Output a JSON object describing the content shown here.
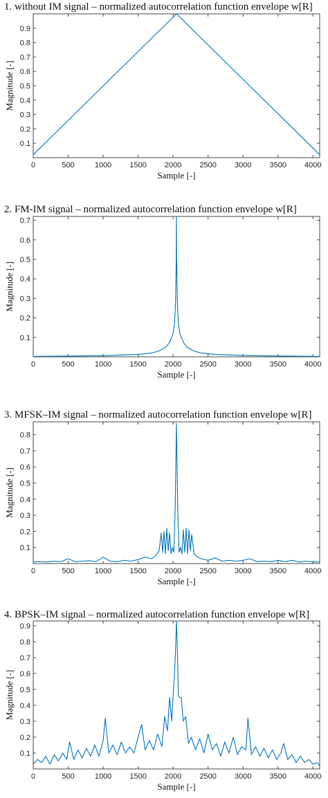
{
  "accent_color": "#0072bd",
  "chart_data": [
    {
      "type": "line",
      "title": "1. without IM signal – normalized autocorrelation function envelope w[R]",
      "xlabel": "Sample [-]",
      "ylabel": "Magnitude [-]",
      "xlim": [
        0,
        4096
      ],
      "ylim": [
        0,
        1
      ],
      "xticks": [
        0,
        500,
        1000,
        1500,
        2000,
        2500,
        3000,
        3500,
        4000
      ],
      "xtick_labels": [
        "0",
        "500",
        "1000",
        "1500",
        "2000",
        "2500",
        "3000",
        "3500",
        "4000"
      ],
      "yticks": [
        0.1,
        0.2,
        0.3,
        0.4,
        0.5,
        0.6,
        0.7,
        0.8,
        0.9
      ],
      "ytick_labels": [
        "0.1",
        "0.2",
        "0.3",
        "0.4",
        "0.5",
        "0.6",
        "0.7",
        "0.8",
        "0.9"
      ],
      "grid": false,
      "series": [
        {
          "x": [
            0,
            2048,
            4096
          ],
          "y": [
            0.02,
            1.0,
            0.02
          ]
        }
      ]
    },
    {
      "type": "line",
      "title": "2. FM-IM signal – normalized autocorrelation function envelope w[R]",
      "xlabel": "Sample [-]",
      "ylabel": "Magnitude [-]",
      "xlim": [
        0,
        4096
      ],
      "ylim": [
        0,
        0.72
      ],
      "xticks": [
        0,
        500,
        1000,
        1500,
        2000,
        2500,
        3000,
        3500,
        4000
      ],
      "xtick_labels": [
        "0",
        "500",
        "1000",
        "1500",
        "2000",
        "2500",
        "3000",
        "3500",
        "4000"
      ],
      "yticks": [
        0.1,
        0.2,
        0.3,
        0.4,
        0.5,
        0.6,
        0.7
      ],
      "ytick_labels": [
        "0.1",
        "0.2",
        "0.3",
        "0.4",
        "0.5",
        "0.6",
        "0.7"
      ],
      "grid": false,
      "series": [
        {
          "x": [
            0,
            500,
            1000,
            1500,
            1700,
            1800,
            1900,
            1950,
            2000,
            2020,
            2035,
            2045,
            2048,
            2051,
            2061,
            2076,
            2096,
            2146,
            2196,
            2296,
            2396,
            2596,
            3096,
            3596,
            4096
          ],
          "y": [
            0.002,
            0.004,
            0.006,
            0.012,
            0.02,
            0.03,
            0.05,
            0.075,
            0.12,
            0.17,
            0.28,
            0.5,
            0.72,
            0.5,
            0.28,
            0.17,
            0.12,
            0.075,
            0.05,
            0.03,
            0.02,
            0.012,
            0.006,
            0.004,
            0.002
          ]
        }
      ]
    },
    {
      "type": "line",
      "title": "3. MFSK–IM signal – normalized autocorrelation function envelope w[R]",
      "xlabel": "Sample [-]",
      "ylabel": "Magnitude [-]",
      "xlim": [
        0,
        4096
      ],
      "ylim": [
        0,
        0.88
      ],
      "xticks": [
        0,
        500,
        1000,
        1500,
        2000,
        2500,
        3000,
        3500,
        4000
      ],
      "xtick_labels": [
        "0",
        "500",
        "1000",
        "1500",
        "2000",
        "2500",
        "3000",
        "3500",
        "4000"
      ],
      "yticks": [
        0.1,
        0.2,
        0.3,
        0.4,
        0.5,
        0.6,
        0.7,
        0.8
      ],
      "ytick_labels": [
        "0.1",
        "0.2",
        "0.3",
        "0.4",
        "0.5",
        "0.6",
        "0.7",
        "0.8"
      ],
      "grid": false,
      "series": [
        {
          "x": [
            0,
            100,
            200,
            300,
            400,
            500,
            600,
            700,
            800,
            900,
            1000,
            1100,
            1200,
            1300,
            1400,
            1500,
            1600,
            1700,
            1750,
            1800,
            1830,
            1850,
            1870,
            1890,
            1910,
            1930,
            1950,
            1970,
            1990,
            2010,
            2030,
            2048,
            2066,
            2086,
            2106,
            2126,
            2146,
            2166,
            2186,
            2206,
            2226,
            2246,
            2266,
            2300,
            2350,
            2400,
            2500,
            2600,
            2700,
            2800,
            2900,
            3000,
            3100,
            3200,
            3300,
            3400,
            3500,
            3600,
            3700,
            3800,
            3900,
            4000,
            4096
          ],
          "y": [
            0.01,
            0.012,
            0.01,
            0.015,
            0.012,
            0.03,
            0.012,
            0.015,
            0.018,
            0.012,
            0.04,
            0.015,
            0.012,
            0.02,
            0.015,
            0.025,
            0.04,
            0.03,
            0.05,
            0.08,
            0.19,
            0.07,
            0.2,
            0.06,
            0.22,
            0.08,
            0.19,
            0.06,
            0.1,
            0.07,
            0.35,
            0.87,
            0.35,
            0.07,
            0.1,
            0.06,
            0.21,
            0.07,
            0.22,
            0.06,
            0.21,
            0.08,
            0.18,
            0.06,
            0.04,
            0.03,
            0.02,
            0.035,
            0.015,
            0.02,
            0.015,
            0.02,
            0.03,
            0.012,
            0.015,
            0.012,
            0.02,
            0.012,
            0.02,
            0.01,
            0.015,
            0.01,
            0.01
          ]
        }
      ]
    },
    {
      "type": "line",
      "title": "4. BPSK–IM signal – normalized autocorrelation function envelope w[R]",
      "xlabel": "Sample [-]",
      "ylabel": "Magnitude [-]",
      "xlim": [
        0,
        4096
      ],
      "ylim": [
        0,
        0.93
      ],
      "xticks": [
        0,
        500,
        1000,
        1500,
        2000,
        2500,
        3000,
        3500,
        4000
      ],
      "xtick_labels": [
        "0",
        "500",
        "1000",
        "1500",
        "2000",
        "2500",
        "3000",
        "3500",
        "4000"
      ],
      "yticks": [
        0.1,
        0.2,
        0.3,
        0.4,
        0.5,
        0.6,
        0.7,
        0.8,
        0.9
      ],
      "ytick_labels": [
        "0.1",
        "0.2",
        "0.3",
        "0.4",
        "0.5",
        "0.6",
        "0.7",
        "0.8",
        "0.9"
      ],
      "grid": false,
      "series": [
        {
          "x": [
            0,
            60,
            120,
            180,
            240,
            300,
            360,
            420,
            480,
            520,
            580,
            640,
            700,
            760,
            820,
            880,
            940,
            1000,
            1030,
            1080,
            1140,
            1200,
            1260,
            1320,
            1380,
            1440,
            1500,
            1550,
            1600,
            1660,
            1720,
            1780,
            1840,
            1880,
            1920,
            1950,
            1980,
            2000,
            2020,
            2035,
            2048,
            2061,
            2076,
            2096,
            2116,
            2146,
            2180,
            2220,
            2260,
            2320,
            2380,
            2440,
            2500,
            2560,
            2620,
            2680,
            2740,
            2800,
            2860,
            2920,
            2980,
            3040,
            3070,
            3120,
            3180,
            3240,
            3300,
            3360,
            3420,
            3480,
            3540,
            3580,
            3640,
            3700,
            3760,
            3820,
            3880,
            3940,
            4000,
            4060,
            4096
          ],
          "y": [
            0.03,
            0.06,
            0.04,
            0.08,
            0.03,
            0.09,
            0.05,
            0.1,
            0.06,
            0.17,
            0.06,
            0.12,
            0.07,
            0.13,
            0.08,
            0.15,
            0.08,
            0.18,
            0.32,
            0.1,
            0.15,
            0.09,
            0.17,
            0.1,
            0.14,
            0.1,
            0.2,
            0.28,
            0.12,
            0.18,
            0.12,
            0.22,
            0.14,
            0.33,
            0.24,
            0.45,
            0.3,
            0.46,
            0.6,
            0.75,
            0.93,
            0.75,
            0.46,
            0.45,
            0.45,
            0.3,
            0.33,
            0.16,
            0.2,
            0.12,
            0.19,
            0.1,
            0.22,
            0.12,
            0.16,
            0.08,
            0.17,
            0.1,
            0.2,
            0.09,
            0.14,
            0.12,
            0.32,
            0.09,
            0.14,
            0.08,
            0.13,
            0.07,
            0.12,
            0.06,
            0.1,
            0.16,
            0.06,
            0.09,
            0.04,
            0.08,
            0.04,
            0.06,
            0.03,
            0.04,
            0.02
          ]
        }
      ]
    }
  ]
}
